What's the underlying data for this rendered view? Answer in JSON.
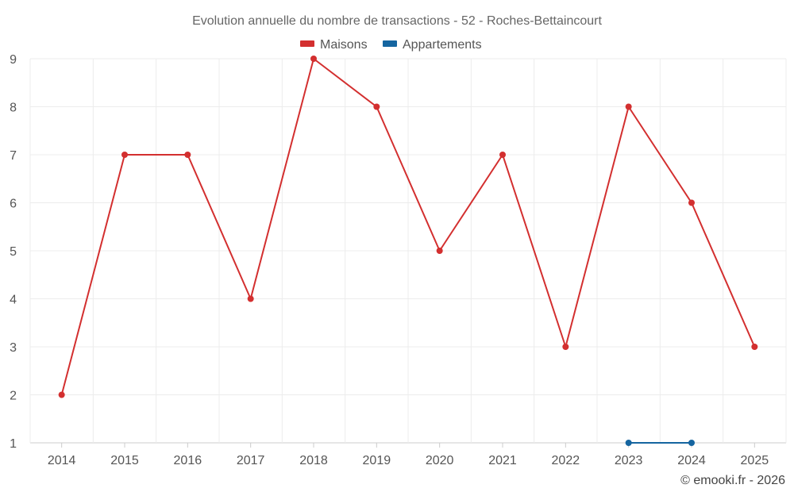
{
  "chart_data": {
    "type": "line",
    "title": "Evolution annuelle du nombre de transactions - 52 - Roches-Bettaincourt",
    "categories": [
      "2014",
      "2015",
      "2016",
      "2017",
      "2018",
      "2019",
      "2020",
      "2021",
      "2022",
      "2023",
      "2024",
      "2025"
    ],
    "ylim": [
      1,
      9
    ],
    "yticks": [
      1,
      2,
      3,
      4,
      5,
      6,
      7,
      8,
      9
    ],
    "grid": true,
    "legend_position": "top-center",
    "series": [
      {
        "name": "Maisons",
        "color": "#d32f2f",
        "values": [
          2,
          7,
          7,
          4,
          9,
          8,
          5,
          7,
          3,
          8,
          6,
          3
        ]
      },
      {
        "name": "Appartements",
        "color": "#1565a0",
        "values": [
          null,
          null,
          null,
          null,
          null,
          null,
          null,
          null,
          null,
          1,
          1,
          null
        ]
      }
    ]
  },
  "credit": "© emooki.fr - 2026"
}
